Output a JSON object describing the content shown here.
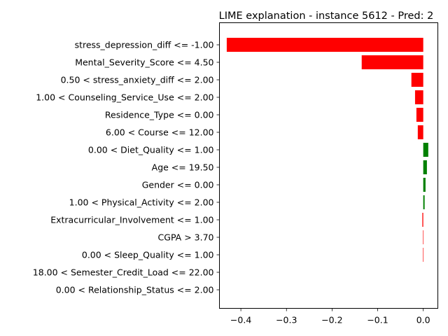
{
  "chart_data": {
    "type": "bar",
    "orientation": "horizontal",
    "title": "LIME explanation - instance 5612 - Pred: 2",
    "xlabel": "",
    "ylabel": "",
    "xlim": [
      -0.447,
      0.032
    ],
    "xticks": [
      -0.4,
      -0.3,
      -0.2,
      -0.1,
      0.0
    ],
    "xtick_labels": [
      "−0.4",
      "−0.3",
      "−0.2",
      "−0.1",
      "0.0"
    ],
    "grid": false,
    "legend": "none",
    "positive_color": "#008000",
    "negative_color": "#ff0000",
    "categories": [
      "stress_depression_diff <= -1.00",
      "Mental_Severity_Score <= 4.50",
      "0.50 < stress_anxiety_diff <= 2.00",
      "1.00 < Counseling_Service_Use <= 2.00",
      "Residence_Type <= 0.00",
      "6.00 < Course <= 12.00",
      "0.00 < Diet_Quality <= 1.00",
      "Age <= 19.50",
      "Gender <= 0.00",
      "1.00 < Physical_Activity <= 2.00",
      "Extracurricular_Involvement <= 1.00",
      "CGPA > 3.70",
      "0.00 < Sleep_Quality <= 1.00",
      "18.00 < Semester_Credit_Load <= 22.00",
      "0.00 < Relationship_Status <= 2.00"
    ],
    "values": [
      -0.431,
      -0.135,
      -0.026,
      -0.018,
      -0.015,
      -0.012,
      0.011,
      0.008,
      0.005,
      0.003,
      -0.002,
      -0.001,
      -0.001,
      0.0,
      0.0
    ]
  }
}
